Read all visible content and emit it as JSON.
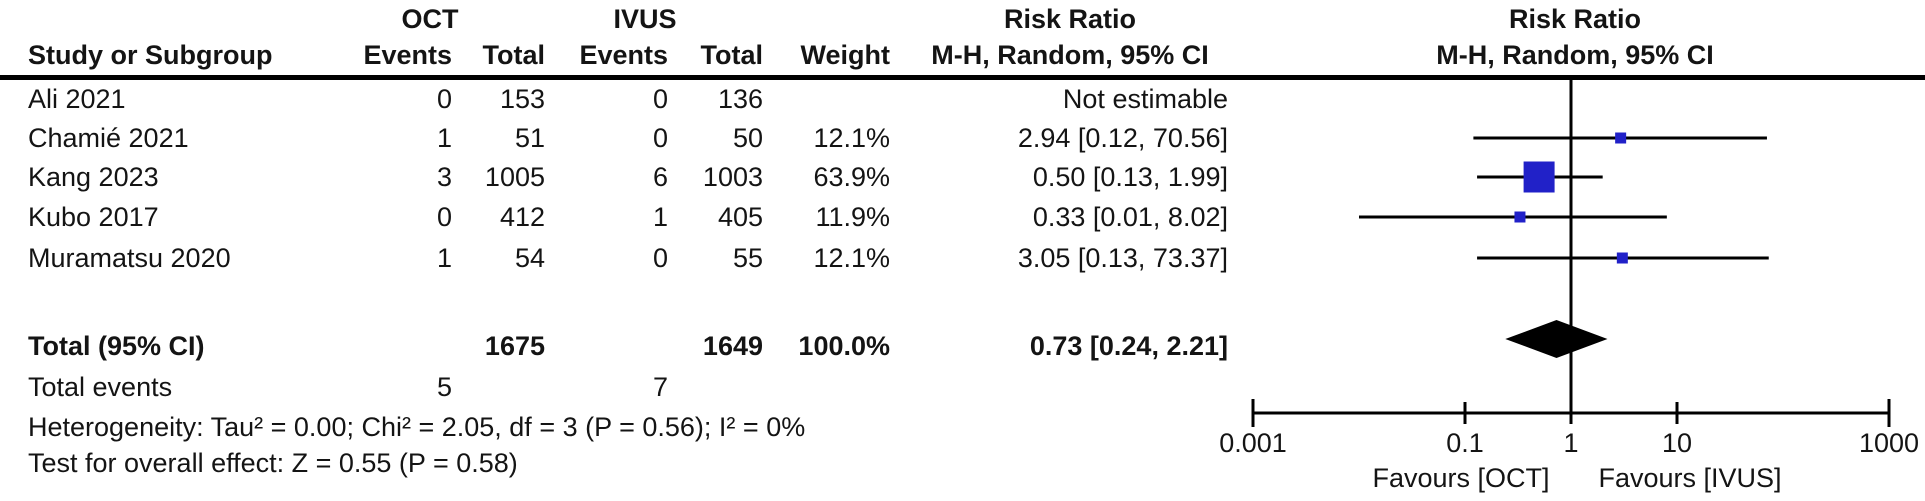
{
  "figure": {
    "background": "#ffffff",
    "text_color": "#141414",
    "marker_color": "#2121c8",
    "line_color": "#000000",
    "diamond_color": "#000000"
  },
  "header": {
    "group_oct": "OCT",
    "group_ivus": "IVUS",
    "risk_ratio_left": "Risk Ratio",
    "risk_ratio_right": "Risk Ratio",
    "study_col": "Study or Subgroup",
    "events_col_oct": "Events",
    "total_col_oct": "Total",
    "events_col_ivus": "Events",
    "total_col_ivus": "Total",
    "weight_col": "Weight",
    "method_left": "M-H, Random, 95% CI",
    "method_right": "M-H, Random, 95% CI"
  },
  "chart_data": {
    "type": "forest",
    "effect_measure": "Risk Ratio",
    "model": "M-H, Random, 95% CI",
    "x_scale": "log10",
    "axis_range": [
      0.001,
      1000
    ],
    "x_ticks": [
      0.001,
      0.1,
      1,
      10,
      1000
    ],
    "x_tick_labels": [
      "0.001",
      "0.1",
      "1",
      "10",
      "1000"
    ],
    "favours_left": "Favours [OCT]",
    "favours_right": "Favours [IVUS]",
    "studies": [
      {
        "name": "Ali 2021",
        "oct_events": "0",
        "oct_total": "153",
        "ivus_events": "0",
        "ivus_total": "136",
        "weight": "",
        "weight_pct": 0,
        "ci_text": "Not estimable",
        "estimable": false
      },
      {
        "name": "Chamié 2021",
        "oct_events": "1",
        "oct_total": "51",
        "ivus_events": "0",
        "ivus_total": "50",
        "weight": "12.1%",
        "weight_pct": 12.1,
        "ci_text": "2.94 [0.12, 70.56]",
        "estimable": true,
        "rr": 2.94,
        "ci_low": 0.12,
        "ci_high": 70.56
      },
      {
        "name": "Kang 2023",
        "oct_events": "3",
        "oct_total": "1005",
        "ivus_events": "6",
        "ivus_total": "1003",
        "weight": "63.9%",
        "weight_pct": 63.9,
        "ci_text": "0.50 [0.13, 1.99]",
        "estimable": true,
        "rr": 0.5,
        "ci_low": 0.13,
        "ci_high": 1.99
      },
      {
        "name": "Kubo 2017",
        "oct_events": "0",
        "oct_total": "412",
        "ivus_events": "1",
        "ivus_total": "405",
        "weight": "11.9%",
        "weight_pct": 11.9,
        "ci_text": "0.33 [0.01, 8.02]",
        "estimable": true,
        "rr": 0.33,
        "ci_low": 0.01,
        "ci_high": 8.02
      },
      {
        "name": "Muramatsu 2020",
        "oct_events": "1",
        "oct_total": "54",
        "ivus_events": "0",
        "ivus_total": "55",
        "weight": "12.1%",
        "weight_pct": 12.1,
        "ci_text": "3.05 [0.13, 73.37]",
        "estimable": true,
        "rr": 3.05,
        "ci_low": 0.13,
        "ci_high": 73.37
      }
    ],
    "total": {
      "label": "Total (95% CI)",
      "oct_total": "1675",
      "ivus_total": "1649",
      "weight": "100.0%",
      "ci_text": "0.73 [0.24, 2.21]",
      "rr": 0.73,
      "ci_low": 0.24,
      "ci_high": 2.21
    },
    "total_events": {
      "label": "Total events",
      "oct": "5",
      "ivus": "7"
    },
    "heterogeneity": "Heterogeneity: Tau² = 0.00; Chi² = 2.05, df = 3 (P = 0.56); I² = 0%",
    "overall_effect": "Test for overall effect: Z = 0.55 (P = 0.58)"
  }
}
